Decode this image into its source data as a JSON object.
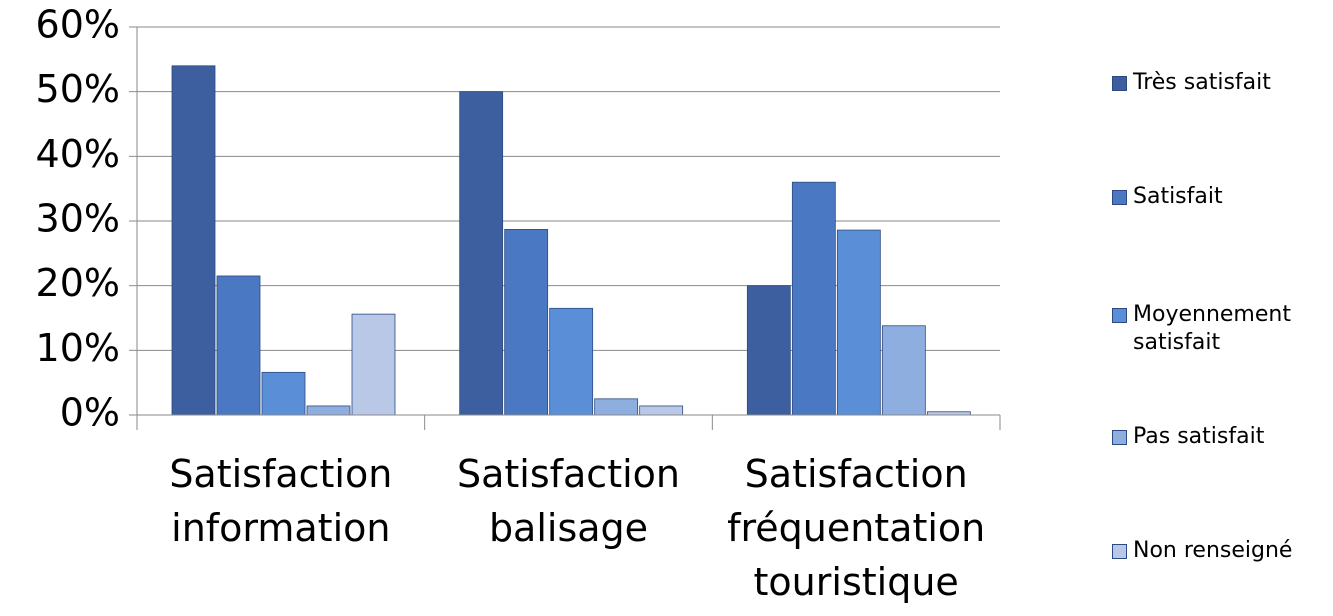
{
  "chart_data": {
    "type": "bar",
    "categories": [
      "Satisfaction information",
      "Satisfaction balisage",
      "Satisfaction fréquentation touristique"
    ],
    "series": [
      {
        "name": "Très satisfait",
        "color": "#3d5f9f",
        "values": [
          54,
          50,
          20
        ]
      },
      {
        "name": "Satisfait",
        "color": "#4a78c2",
        "values": [
          21.5,
          28.7,
          36
        ]
      },
      {
        "name": "Moyennement satisfait",
        "color": "#5a8fd8",
        "values": [
          6.6,
          16.5,
          28.6
        ]
      },
      {
        "name": "Pas satisfait",
        "color": "#8eaee0",
        "values": [
          1.4,
          2.5,
          13.8
        ]
      },
      {
        "name": "Non renseigné",
        "color": "#b9c8e6",
        "values": [
          15.6,
          1.4,
          0.5
        ]
      }
    ],
    "ylim": [
      0,
      60
    ],
    "yticks": [
      {
        "value": 0,
        "label": "0%"
      },
      {
        "value": 10,
        "label": "10%"
      },
      {
        "value": 20,
        "label": "20%"
      },
      {
        "value": 30,
        "label": "30%"
      },
      {
        "value": 40,
        "label": "40%"
      },
      {
        "value": 50,
        "label": "50%"
      },
      {
        "value": 60,
        "label": "60%"
      }
    ],
    "grid": true
  }
}
